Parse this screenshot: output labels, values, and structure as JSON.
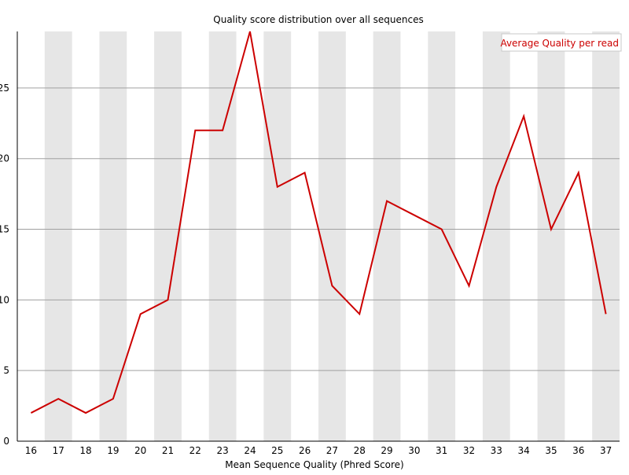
{
  "chart_data": {
    "type": "line",
    "title": "Quality score distribution over all sequences",
    "xlabel": "Mean Sequence Quality (Phred Score)",
    "ylabel": "",
    "categories": [
      "16",
      "17",
      "18",
      "19",
      "20",
      "21",
      "22",
      "23",
      "24",
      "25",
      "26",
      "27",
      "28",
      "29",
      "30",
      "31",
      "32",
      "33",
      "34",
      "35",
      "36",
      "37"
    ],
    "series": [
      {
        "name": "Average Quality per read",
        "color": "#cc0000",
        "values": [
          2,
          3,
          2,
          3,
          9,
          10,
          22,
          22,
          29,
          18,
          19,
          11,
          9,
          17,
          16,
          15,
          11,
          18,
          23,
          15,
          19,
          9
        ]
      }
    ],
    "ylim": [
      0,
      29
    ],
    "yticks": [
      "0",
      "5",
      "10",
      "15",
      "20",
      "25"
    ],
    "grid": true,
    "alternating_bands": true,
    "band_color": "#e6e6e6",
    "gridline_color": "#a0a0a0",
    "legend_position": "top-right"
  }
}
